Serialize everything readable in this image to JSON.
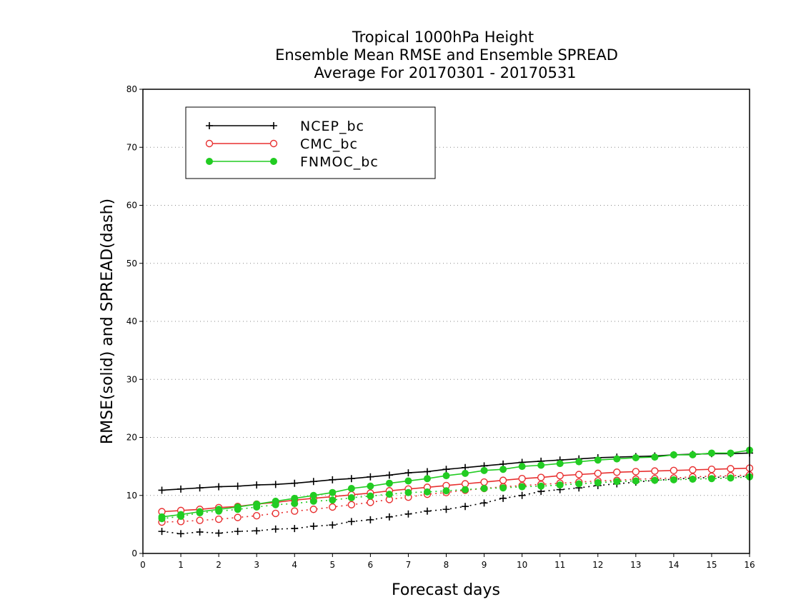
{
  "chart_data": {
    "type": "line",
    "title_lines": [
      "Tropical 1000hPa Height",
      "Ensemble Mean RMSE and Ensemble SPREAD",
      "Average For 20170301 - 20170531"
    ],
    "xlabel": "Forecast days",
    "ylabel": "RMSE(solid) and SPREAD(dash)",
    "xlim": [
      0,
      16
    ],
    "ylim": [
      0,
      80
    ],
    "x_ticks": [
      "0",
      "1",
      "2",
      "3",
      "4",
      "5",
      "6",
      "7",
      "8",
      "9",
      "10",
      "11",
      "12",
      "13",
      "14",
      "15",
      "16"
    ],
    "y_ticks": [
      "0",
      "10",
      "20",
      "30",
      "40",
      "50",
      "60",
      "70",
      "80"
    ],
    "grid": "horizontal dotted",
    "legend_position": "top-left",
    "x": [
      0.5,
      1,
      1.5,
      2,
      2.5,
      3,
      3.5,
      4,
      4.5,
      5,
      5.5,
      6,
      6.5,
      7,
      7.5,
      8,
      8.5,
      9,
      9.5,
      10,
      10.5,
      11,
      11.5,
      12,
      12.5,
      13,
      13.5,
      14,
      14.5,
      15,
      15.5,
      16
    ],
    "series": [
      {
        "name": "NCEP_bc",
        "color": "#000000",
        "marker": "plus",
        "rmse": [
          10.9,
          11.1,
          11.3,
          11.5,
          11.6,
          11.8,
          11.9,
          12.1,
          12.4,
          12.7,
          12.9,
          13.2,
          13.5,
          13.9,
          14.1,
          14.5,
          14.8,
          15.1,
          15.4,
          15.7,
          15.9,
          16.1,
          16.3,
          16.5,
          16.6,
          16.7,
          16.8,
          17.0,
          17.1,
          17.2,
          17.2,
          17.3
        ],
        "spread": [
          3.8,
          3.4,
          3.7,
          3.5,
          3.8,
          3.9,
          4.2,
          4.3,
          4.7,
          4.9,
          5.5,
          5.8,
          6.3,
          6.8,
          7.3,
          7.6,
          8.1,
          8.7,
          9.5,
          10.0,
          10.7,
          11.0,
          11.3,
          11.7,
          12.0,
          12.3,
          12.6,
          12.8,
          13.0,
          13.1,
          13.2,
          13.3
        ]
      },
      {
        "name": "CMC_bc",
        "color": "#e83030",
        "marker": "open-circle",
        "rmse": [
          7.2,
          7.4,
          7.6,
          7.9,
          8.1,
          8.5,
          8.8,
          9.2,
          9.5,
          9.8,
          10.1,
          10.4,
          10.8,
          11.1,
          11.4,
          11.7,
          12.0,
          12.3,
          12.6,
          12.9,
          13.1,
          13.4,
          13.6,
          13.8,
          14.0,
          14.1,
          14.2,
          14.3,
          14.4,
          14.5,
          14.6,
          14.7
        ],
        "spread": [
          5.4,
          5.5,
          5.7,
          5.9,
          6.2,
          6.5,
          6.9,
          7.3,
          7.6,
          8.0,
          8.4,
          8.8,
          9.3,
          9.7,
          10.2,
          10.5,
          10.9,
          11.2,
          11.5,
          11.7,
          11.9,
          12.1,
          12.3,
          12.5,
          12.6,
          12.8,
          12.9,
          13.0,
          13.2,
          13.3,
          13.4,
          13.5
        ]
      },
      {
        "name": "FNMOC_bc",
        "color": "#22cc22",
        "marker": "filled-circle",
        "rmse": [
          6.3,
          6.7,
          7.2,
          7.6,
          8.0,
          8.5,
          9.0,
          9.5,
          10.0,
          10.5,
          11.2,
          11.6,
          12.1,
          12.5,
          12.9,
          13.4,
          13.8,
          14.3,
          14.5,
          15.0,
          15.2,
          15.5,
          15.8,
          16.1,
          16.3,
          16.5,
          16.6,
          17.0,
          17.0,
          17.3,
          17.3,
          17.8
        ],
        "spread": [
          6.0,
          6.4,
          7.0,
          7.3,
          7.6,
          8.0,
          8.4,
          8.6,
          9.0,
          9.2,
          9.6,
          9.9,
          10.2,
          10.5,
          10.6,
          10.8,
          11.0,
          11.2,
          11.3,
          11.5,
          11.6,
          11.8,
          12.0,
          12.2,
          12.4,
          12.5,
          12.6,
          12.7,
          12.8,
          12.9,
          13.0,
          13.2
        ]
      }
    ]
  }
}
